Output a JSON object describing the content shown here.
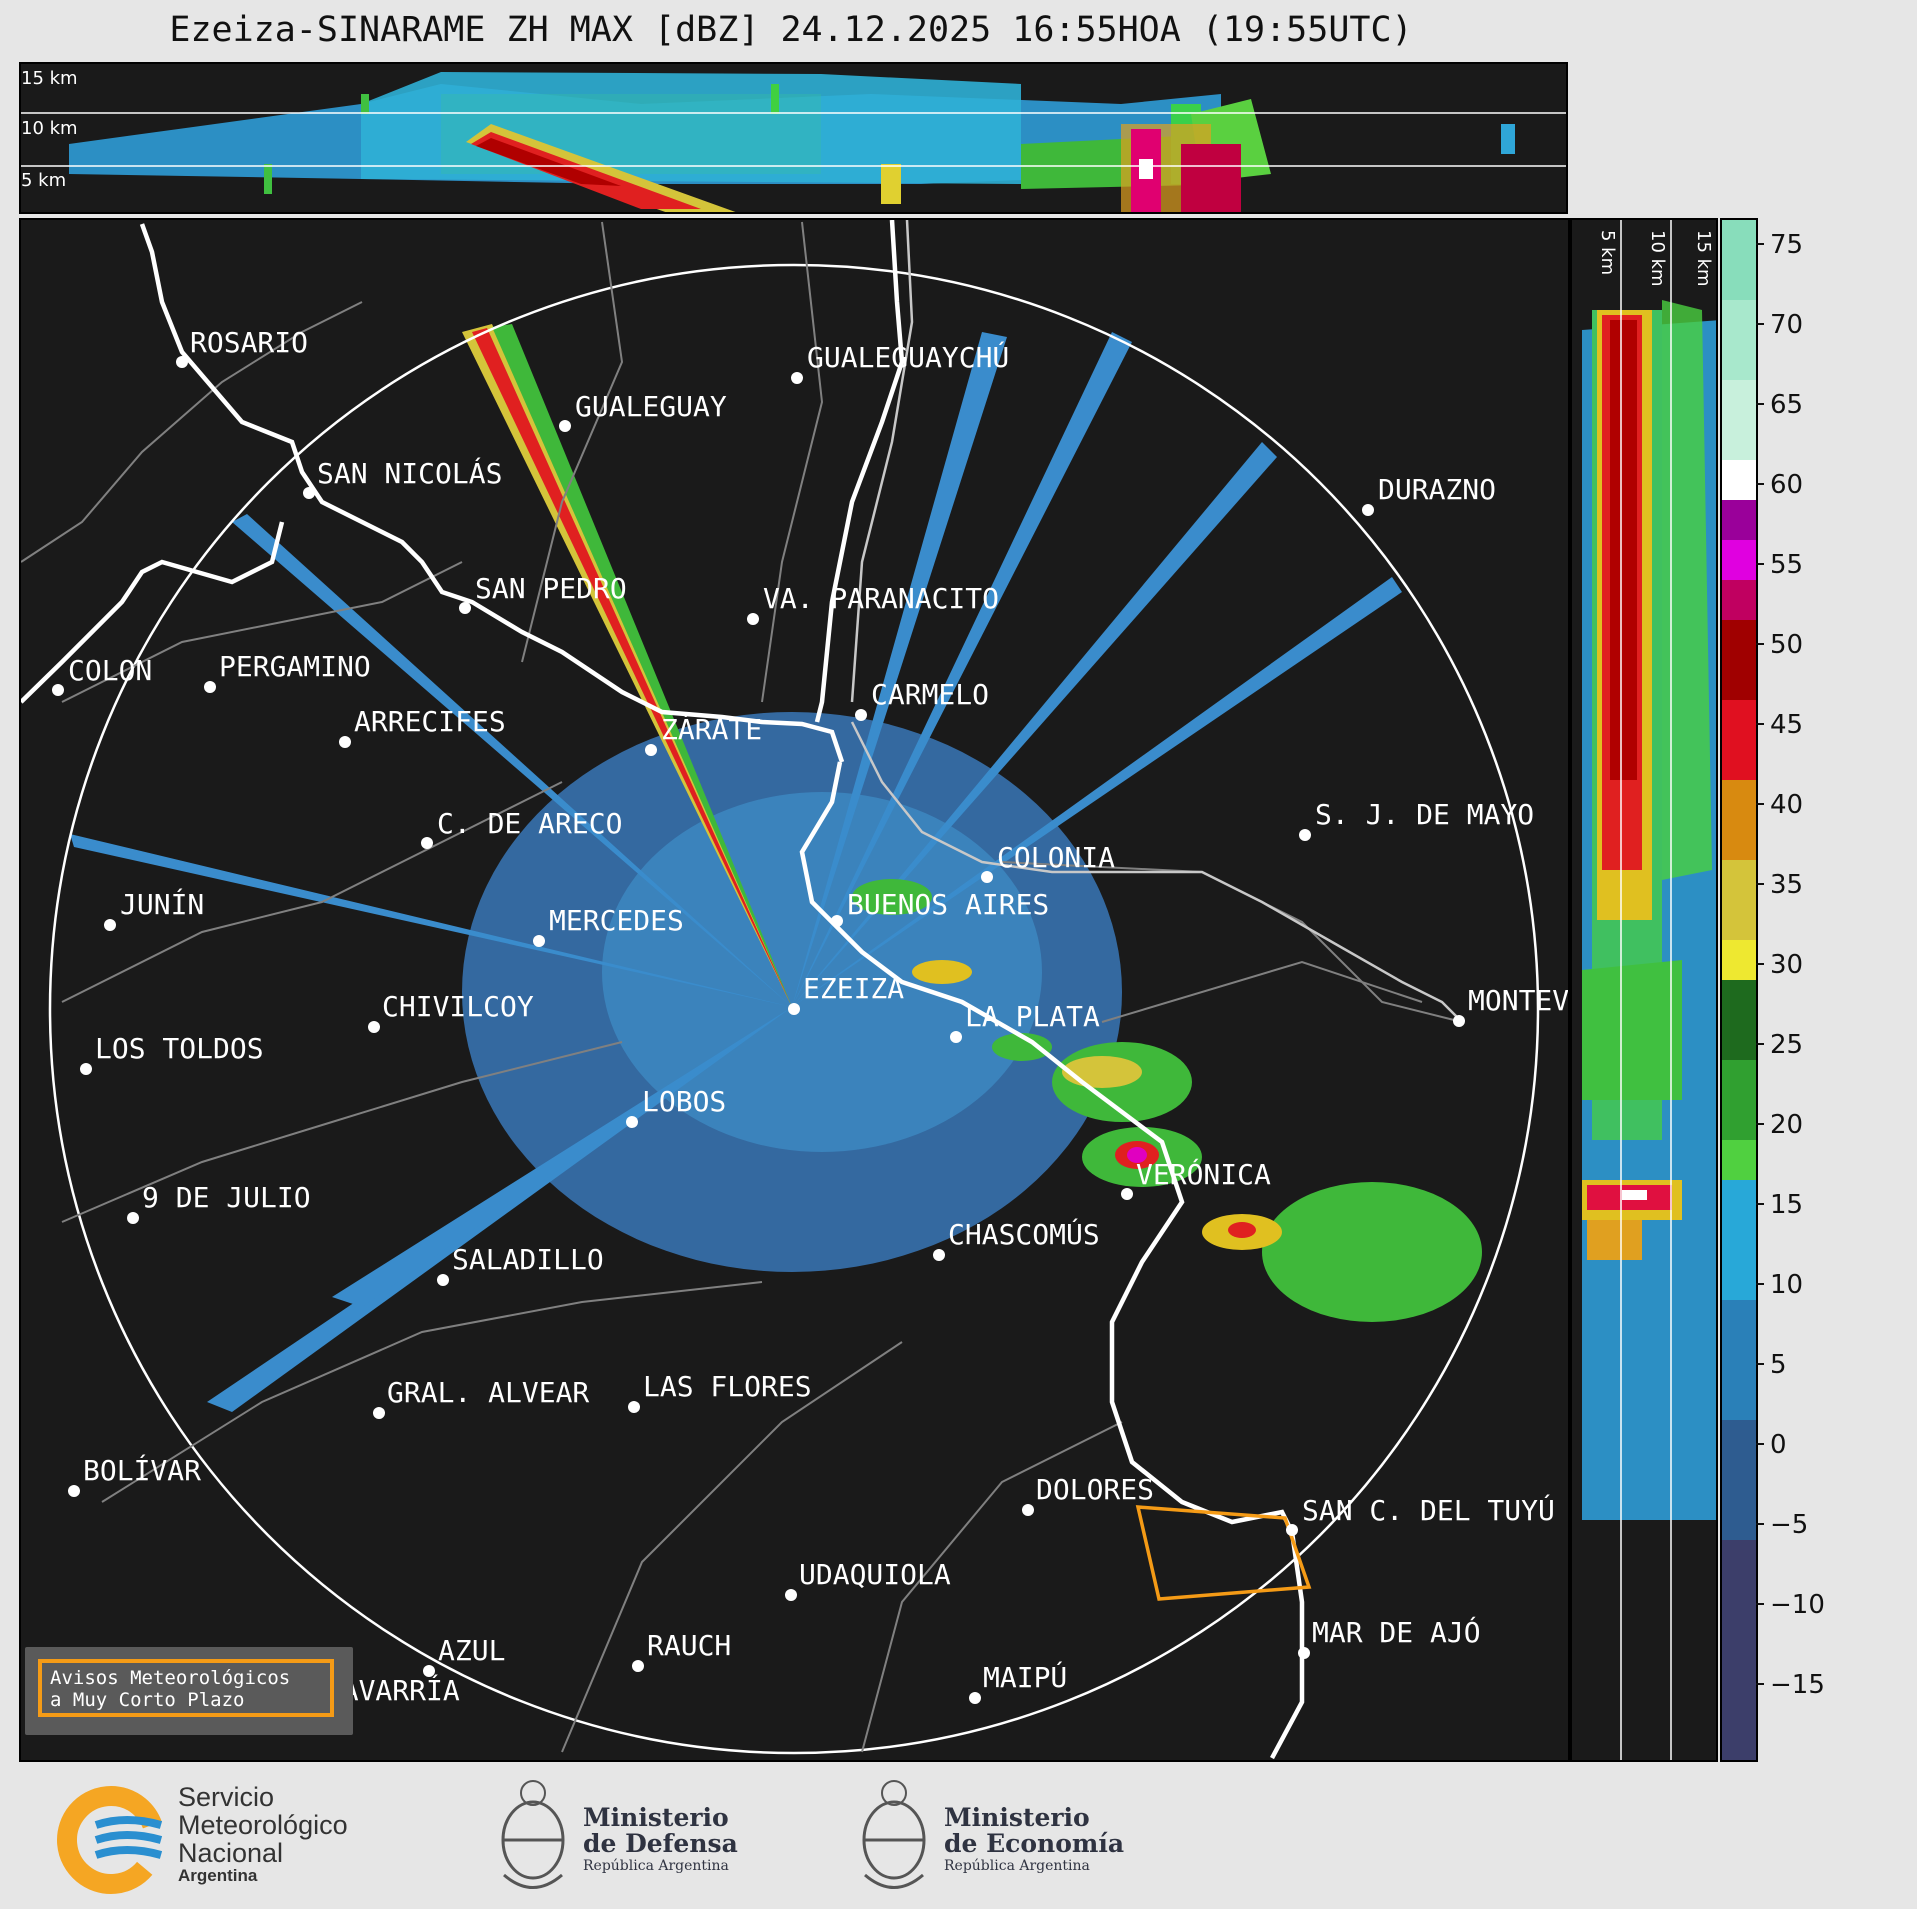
{
  "title": "Ezeiza-SINARAME ZH MAX [dBZ] 24.12.2025 16:55HOA (19:55UTC)",
  "top_panel": {
    "heights": [
      "15 km",
      "10 km",
      "5 km"
    ]
  },
  "right_panel": {
    "heights": [
      "5 km",
      "10 km",
      "15 km"
    ]
  },
  "colorbar": {
    "ticks": [
      "75",
      "70",
      "65",
      "60",
      "55",
      "50",
      "45",
      "40",
      "35",
      "30",
      "25",
      "20",
      "15",
      "10",
      "5",
      "0",
      "−5",
      "−10",
      "−15"
    ]
  },
  "cities": [
    {
      "name": "ROSARIO"
    },
    {
      "name": "GUALEGUAYCHÚ"
    },
    {
      "name": "GUALEGUAY"
    },
    {
      "name": "SAN NICOLÁS"
    },
    {
      "name": "DURAZNO"
    },
    {
      "name": "SAN PEDRO"
    },
    {
      "name": "VA. PARANACITO"
    },
    {
      "name": "COLON"
    },
    {
      "name": "PERGAMINO"
    },
    {
      "name": "CARMELO"
    },
    {
      "name": "ARRECIFES"
    },
    {
      "name": "ZÁRATE"
    },
    {
      "name": "S. J. DE MAYO"
    },
    {
      "name": "C. DE ARECO"
    },
    {
      "name": "COLONIA"
    },
    {
      "name": "JUNÍN"
    },
    {
      "name": "BUENOS AIRES"
    },
    {
      "name": "MERCEDES"
    },
    {
      "name": "EZEIZA"
    },
    {
      "name": "MONTEV"
    },
    {
      "name": "CHIVILCOY"
    },
    {
      "name": "LA PLATA"
    },
    {
      "name": "LOS TOLDOS"
    },
    {
      "name": "LOBOS"
    },
    {
      "name": "VERÓNICA"
    },
    {
      "name": "9 DE JULIO"
    },
    {
      "name": "CHASCOMÚS"
    },
    {
      "name": "SALADILLO"
    },
    {
      "name": "GRAL. ALVEAR"
    },
    {
      "name": "LAS FLORES"
    },
    {
      "name": "BOLÍVAR"
    },
    {
      "name": "DOLORES"
    },
    {
      "name": "SAN C. DEL TUYÚ"
    },
    {
      "name": "UDAQUIOLA"
    },
    {
      "name": "MAR DE AJÓ"
    },
    {
      "name": "AZUL"
    },
    {
      "name": "RAUCH"
    },
    {
      "name": "OLAVARRÍA"
    },
    {
      "name": "MAIPÚ"
    }
  ],
  "aviso": {
    "line1": "Avisos Meteorológicos",
    "line2": "a Muy Corto Plazo"
  },
  "footer": {
    "smn": {
      "line1": "Servicio",
      "line2": "Meteorológico",
      "line3": "Nacional",
      "line4": "Argentina"
    },
    "defensa": {
      "line1": "Ministerio",
      "line2": "de Defensa",
      "line3": "República Argentina"
    },
    "economia": {
      "line1": "Ministerio",
      "line2": "de Economía",
      "line3": "República Argentina"
    }
  },
  "colors": {
    "panel_bg": "#1a1a1a",
    "accent_warning": "#f59b16",
    "smn_blue": "#2a8fd0",
    "smn_orange": "#f5a623"
  }
}
